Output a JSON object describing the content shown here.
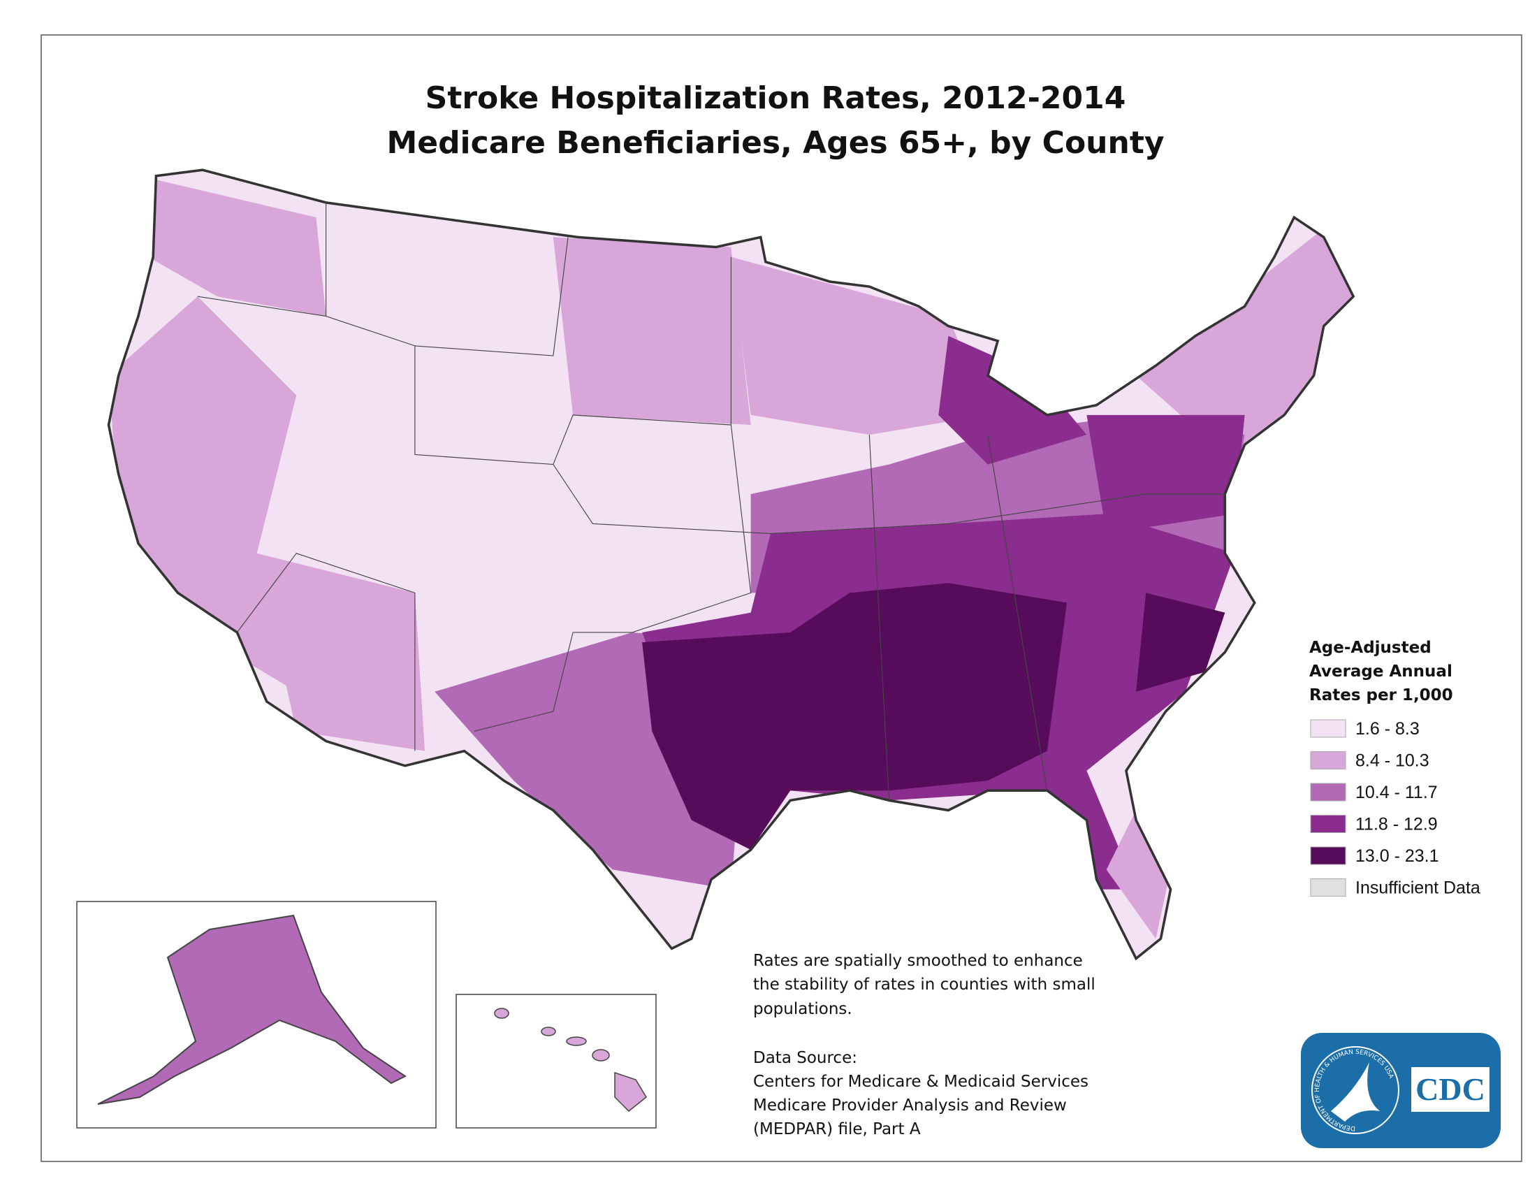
{
  "title": {
    "line1": "Stroke Hospitalization Rates, 2012-2014",
    "line2": "Medicare Beneficiaries, Ages 65+, by County"
  },
  "legend": {
    "title": [
      "Age-Adjusted",
      "Average Annual",
      "Rates per 1,000"
    ],
    "items": [
      {
        "label": "1.6 - 8.3",
        "color": "#f3e2f3"
      },
      {
        "label": "8.4 - 10.3",
        "color": "#d8a6d8"
      },
      {
        "label": "10.4 - 11.7",
        "color": "#b26ab6"
      },
      {
        "label": "11.8 - 12.9",
        "color": "#8b2d8e"
      },
      {
        "label": "13.0 - 23.1",
        "color": "#560b5b"
      },
      {
        "label": "Insufficient Data",
        "color": "#e0e0e0"
      }
    ]
  },
  "note": [
    "Rates are spatially smoothed to enhance",
    "the stability of rates in counties with small",
    "populations."
  ],
  "source": [
    "Data Source:",
    "Centers for Medicare & Medicaid Services",
    "Medicare Provider Analysis and Review",
    "(MEDPAR) file, Part A"
  ],
  "logo": {
    "text": "CDC",
    "ring": "DEPARTMENT OF HEALTH & HUMAN SERVICES USA"
  }
}
